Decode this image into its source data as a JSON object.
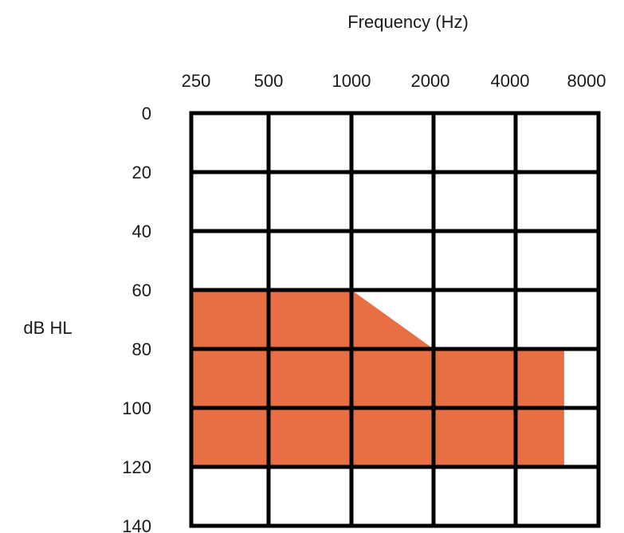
{
  "chart_data": {
    "type": "area",
    "title": "",
    "xlabel": "Frequency (Hz)",
    "ylabel": "dB HL",
    "x_ticks": [
      "250",
      "500",
      "1000",
      "2000",
      "4000",
      "8000"
    ],
    "y_ticks": [
      "0",
      "20",
      "40",
      "60",
      "80",
      "100",
      "120",
      "140"
    ],
    "y_axis_inverted": true,
    "ylim": [
      0,
      140
    ],
    "x_scale": "log",
    "grid": true,
    "region": {
      "color": "#E86F44",
      "upper_boundary": [
        {
          "x": 250,
          "y": 60
        },
        {
          "x": 1000,
          "y": 60
        },
        {
          "x": 2000,
          "y": 80
        },
        {
          "x": 6000,
          "y": 80
        }
      ],
      "lower_boundary": [
        {
          "x": 250,
          "y": 120
        },
        {
          "x": 6000,
          "y": 120
        }
      ]
    }
  }
}
